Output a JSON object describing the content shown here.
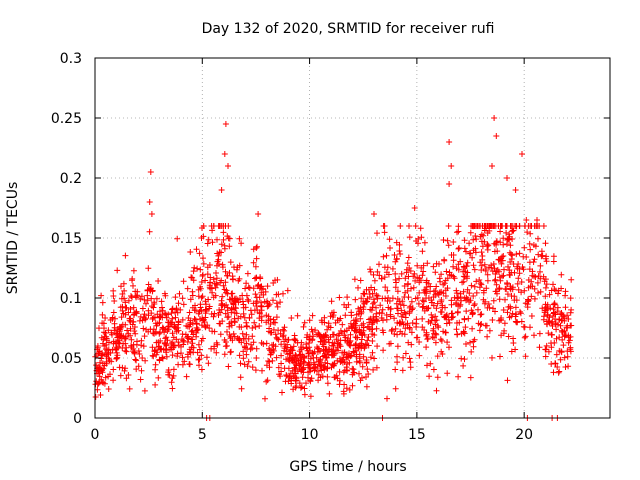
{
  "chart_data": {
    "type": "scatter",
    "title": "Day 132 of 2020, SRMTID for receiver rufi",
    "xlabel": "GPS time / hours",
    "ylabel": "SRMTID / TECUs",
    "xlim": [
      0,
      24
    ],
    "ylim": [
      0,
      0.3
    ],
    "x_ticks": [
      0,
      5,
      10,
      15,
      20
    ],
    "x_tick_labels": [
      "0",
      "5",
      "10",
      "15",
      "20"
    ],
    "y_ticks": [
      0,
      0.05,
      0.1,
      0.15,
      0.2,
      0.25,
      0.3
    ],
    "y_tick_labels": [
      "0",
      "0.05",
      "0.1",
      "0.15",
      "0.2",
      "0.25",
      "0.3"
    ],
    "grid": true,
    "marker": "+",
    "series_color": "#ff0000",
    "x_extent": [
      0,
      22.2
    ],
    "trend": [
      [
        0.0,
        0.04
      ],
      [
        0.5,
        0.055
      ],
      [
        1.0,
        0.07
      ],
      [
        1.5,
        0.075
      ],
      [
        2.0,
        0.07
      ],
      [
        2.5,
        0.085
      ],
      [
        3.0,
        0.07
      ],
      [
        3.5,
        0.065
      ],
      [
        4.0,
        0.075
      ],
      [
        4.5,
        0.08
      ],
      [
        5.0,
        0.1
      ],
      [
        5.5,
        0.11
      ],
      [
        6.0,
        0.12
      ],
      [
        6.5,
        0.085
      ],
      [
        7.0,
        0.075
      ],
      [
        7.5,
        0.09
      ],
      [
        8.0,
        0.08
      ],
      [
        8.5,
        0.065
      ],
      [
        9.0,
        0.05
      ],
      [
        9.5,
        0.045
      ],
      [
        10.0,
        0.05
      ],
      [
        10.5,
        0.055
      ],
      [
        11.0,
        0.06
      ],
      [
        11.5,
        0.055
      ],
      [
        12.0,
        0.06
      ],
      [
        12.5,
        0.075
      ],
      [
        13.0,
        0.09
      ],
      [
        13.5,
        0.11
      ],
      [
        14.0,
        0.095
      ],
      [
        14.5,
        0.1
      ],
      [
        15.0,
        0.105
      ],
      [
        15.5,
        0.09
      ],
      [
        16.0,
        0.085
      ],
      [
        16.5,
        0.095
      ],
      [
        17.0,
        0.11
      ],
      [
        17.5,
        0.12
      ],
      [
        18.0,
        0.125
      ],
      [
        18.5,
        0.13
      ],
      [
        19.0,
        0.12
      ],
      [
        19.5,
        0.115
      ],
      [
        20.0,
        0.12
      ],
      [
        20.5,
        0.125
      ],
      [
        21.0,
        0.1
      ],
      [
        21.5,
        0.075
      ],
      [
        22.0,
        0.07
      ],
      [
        22.2,
        0.08
      ]
    ],
    "spikes": [
      [
        2.6,
        0.205
      ],
      [
        2.55,
        0.18
      ],
      [
        2.65,
        0.17
      ],
      [
        6.1,
        0.245
      ],
      [
        6.05,
        0.22
      ],
      [
        6.2,
        0.21
      ],
      [
        5.9,
        0.19
      ],
      [
        7.6,
        0.17
      ],
      [
        13.0,
        0.17
      ],
      [
        14.9,
        0.175
      ],
      [
        16.5,
        0.23
      ],
      [
        16.6,
        0.21
      ],
      [
        16.5,
        0.195
      ],
      [
        18.6,
        0.25
      ],
      [
        18.7,
        0.235
      ],
      [
        18.5,
        0.21
      ],
      [
        19.2,
        0.2
      ],
      [
        19.6,
        0.19
      ],
      [
        19.9,
        0.22
      ],
      [
        20.1,
        0.165
      ],
      [
        20.6,
        0.165
      ],
      [
        5.2,
        0.0
      ],
      [
        5.35,
        0.0
      ],
      [
        13.4,
        0.0
      ],
      [
        20.15,
        0.0
      ],
      [
        21.3,
        0.0
      ],
      [
        21.55,
        0.0
      ]
    ],
    "point_count": 2200
  }
}
